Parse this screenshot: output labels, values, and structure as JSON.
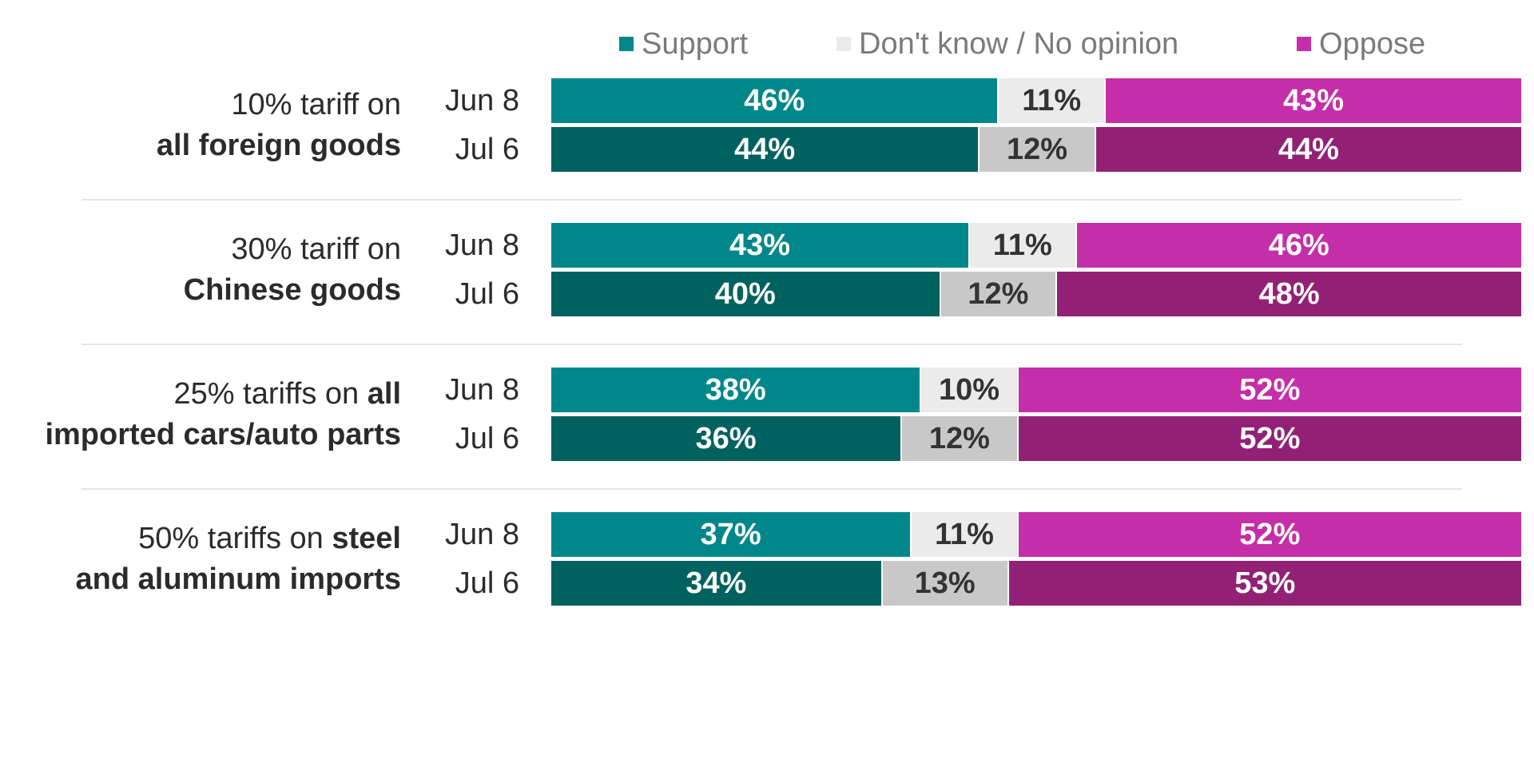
{
  "legend": [
    {
      "label": "Support",
      "color": "#00878A"
    },
    {
      "label": "Don't know / No opinion",
      "color": "#EBEBEB"
    },
    {
      "label": "Oppose",
      "color": "#C42EA8"
    }
  ],
  "colors": {
    "support_current": "#00878A",
    "support_prior": "#00625F",
    "dk_current": "#EBEBEB",
    "dk_prior": "#C8C8C8",
    "oppose_current": "#C42EA8",
    "oppose_prior": "#922175"
  },
  "groups": [
    {
      "label_plain_1": "10% tariff on",
      "label_bold_1": "",
      "label_plain_2": "",
      "label_bold_2": "all foreign goods"
    },
    {
      "label_plain_1": "30% tariff on",
      "label_bold_1": "",
      "label_plain_2": "",
      "label_bold_2": "Chinese goods"
    },
    {
      "label_plain_1": "25% tariffs on ",
      "label_bold_1": "all",
      "label_plain_2": "",
      "label_bold_2": "imported cars/auto parts"
    },
    {
      "label_plain_1": "50% tariffs on ",
      "label_bold_1": "steel",
      "label_plain_2": "",
      "label_bold_2": "and aluminum imports"
    }
  ],
  "chart_data": {
    "type": "bar",
    "stacked": true,
    "orientation": "horizontal",
    "legend_position": "top",
    "categories": [
      "10% tariff on all foreign goods",
      "30% tariff on Chinese goods",
      "25% tariffs on all imported cars/auto parts",
      "50% tariffs on steel and aluminum imports"
    ],
    "periods": [
      "Jun 8",
      "Jul 6"
    ],
    "series": [
      {
        "name": "Support",
        "values": [
          [
            46,
            44
          ],
          [
            43,
            40
          ],
          [
            38,
            36
          ],
          [
            37,
            34
          ]
        ]
      },
      {
        "name": "Don't know / No opinion",
        "values": [
          [
            11,
            12
          ],
          [
            11,
            12
          ],
          [
            10,
            12
          ],
          [
            11,
            13
          ]
        ]
      },
      {
        "name": "Oppose",
        "values": [
          [
            43,
            44
          ],
          [
            46,
            48
          ],
          [
            52,
            52
          ],
          [
            52,
            53
          ]
        ]
      }
    ],
    "value_suffix": "%",
    "xlim": [
      0,
      100
    ]
  }
}
